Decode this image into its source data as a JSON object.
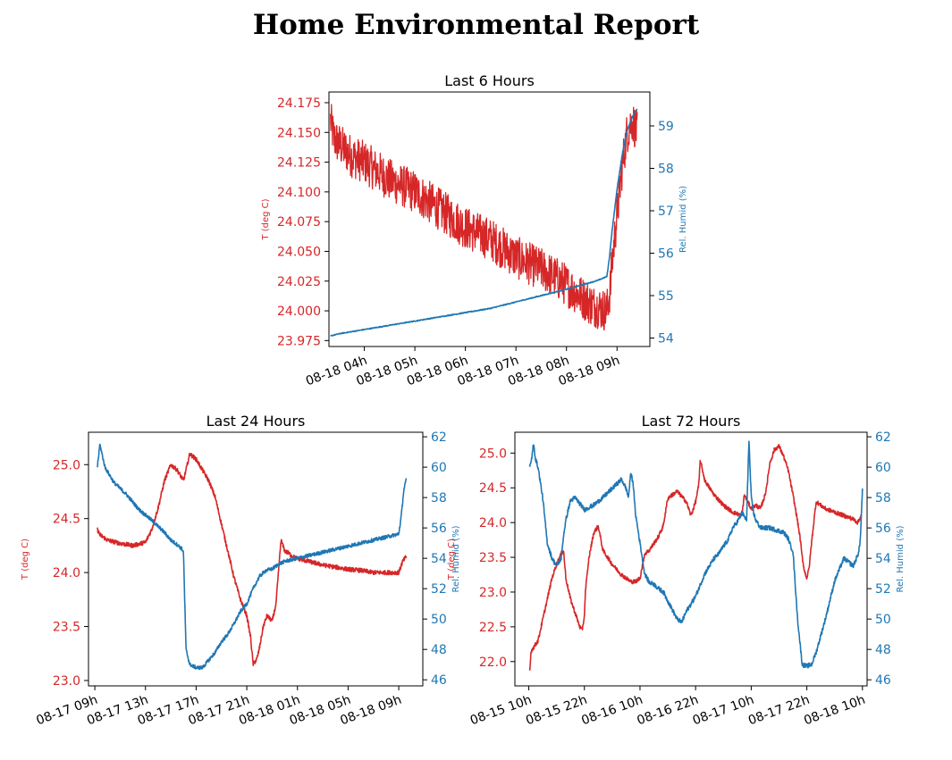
{
  "page": {
    "title": "Home Environmental Report"
  },
  "colors": {
    "temperature": "#d62728",
    "humidity": "#1f77b4",
    "axes": "#000000"
  },
  "chart_data": [
    {
      "type": "line",
      "title": "Last 6 Hours",
      "ylabel": "T (deg C)",
      "y2label": "Rel. Humid (%)",
      "x_unit": "hours since 2024-08-18 00:00",
      "xlim": [
        3.3,
        9.65
      ],
      "ylim": [
        23.97,
        24.184
      ],
      "y2lim": [
        53.8,
        59.8
      ],
      "x_ticks": [
        4,
        5,
        6,
        7,
        8,
        9
      ],
      "x_tick_labels": [
        "08-18 04h",
        "08-18 05h",
        "08-18 06h",
        "08-18 07h",
        "08-18 08h",
        "08-18 09h"
      ],
      "y_ticks": [
        23.975,
        24.0,
        24.025,
        24.05,
        24.075,
        24.1,
        24.125,
        24.15,
        24.175
      ],
      "y_tick_labels": [
        "23.975",
        "24.000",
        "24.025",
        "24.050",
        "24.075",
        "24.100",
        "24.125",
        "24.150",
        "24.175"
      ],
      "y2_ticks": [
        54,
        55,
        56,
        57,
        58,
        59
      ],
      "y2_tick_labels": [
        "54",
        "55",
        "56",
        "57",
        "58",
        "59"
      ],
      "series": [
        {
          "axis": "left",
          "noise": 0.018,
          "x": [
            3.33,
            3.4,
            3.5,
            3.75,
            4.0,
            4.5,
            5.0,
            5.5,
            6.0,
            6.5,
            7.0,
            7.5,
            7.9,
            8.2,
            8.5,
            8.8,
            8.87,
            8.9,
            9.0,
            9.1,
            9.2,
            9.3,
            9.4
          ],
          "y": [
            24.16,
            24.145,
            24.14,
            24.13,
            24.125,
            24.11,
            24.1,
            24.085,
            24.07,
            24.06,
            24.045,
            24.035,
            24.025,
            24.015,
            24.005,
            24.0,
            24.02,
            24.04,
            24.08,
            24.12,
            24.15,
            24.16,
            24.15
          ]
        },
        {
          "axis": "right",
          "noise": 0.01,
          "x": [
            3.33,
            3.5,
            4.0,
            4.5,
            5.0,
            5.5,
            6.0,
            6.5,
            7.0,
            7.5,
            8.0,
            8.3,
            8.6,
            8.8,
            8.85,
            8.9,
            9.0,
            9.1,
            9.2,
            9.3,
            9.4
          ],
          "y": [
            54.05,
            54.1,
            54.2,
            54.3,
            54.4,
            54.5,
            54.6,
            54.7,
            54.85,
            55.0,
            55.15,
            55.25,
            55.35,
            55.45,
            55.9,
            56.5,
            57.5,
            58.3,
            58.9,
            59.2,
            59.4
          ]
        }
      ]
    },
    {
      "type": "line",
      "title": "Last 24 Hours",
      "ylabel": "T (deg C)",
      "y2label": "Rel. Humid (%)",
      "x_unit": "hours since 2024-08-17 00:00",
      "xlim": [
        8.5,
        34.9
      ],
      "ylim": [
        22.95,
        25.3
      ],
      "y2lim": [
        45.6,
        62.3
      ],
      "x_ticks": [
        9,
        13,
        17,
        21,
        25,
        29,
        33
      ],
      "x_tick_labels": [
        "08-17 09h",
        "08-17 13h",
        "08-17 17h",
        "08-17 21h",
        "08-18 01h",
        "08-18 05h",
        "08-18 09h"
      ],
      "y_ticks": [
        23.0,
        23.5,
        24.0,
        24.5,
        25.0
      ],
      "y_tick_labels": [
        "23.0",
        "23.5",
        "24.0",
        "24.5",
        "25.0"
      ],
      "y2_ticks": [
        46,
        48,
        50,
        52,
        54,
        56,
        58,
        60,
        62
      ],
      "y2_tick_labels": [
        "46",
        "48",
        "50",
        "52",
        "54",
        "56",
        "58",
        "60",
        "62"
      ],
      "series": [
        {
          "axis": "left",
          "noise": 0.02,
          "x": [
            9.2,
            9.4,
            10.0,
            11.0,
            12.0,
            13.0,
            13.5,
            14.0,
            14.5,
            15.0,
            15.5,
            16.0,
            16.5,
            17.0,
            17.5,
            18.0,
            18.5,
            19.0,
            19.5,
            20.0,
            20.5,
            21.0,
            21.3,
            21.5,
            21.8,
            22.0,
            22.3,
            22.6,
            23.0,
            23.3,
            23.7,
            24.0,
            24.3,
            24.6,
            25.0,
            26.0,
            27.0,
            28.0,
            29.0,
            30.0,
            31.0,
            32.0,
            33.0,
            33.3,
            33.6
          ],
          "y": [
            24.4,
            24.35,
            24.3,
            24.27,
            24.25,
            24.28,
            24.4,
            24.6,
            24.85,
            25.0,
            24.95,
            24.85,
            25.1,
            25.05,
            24.95,
            24.85,
            24.7,
            24.45,
            24.2,
            23.95,
            23.75,
            23.6,
            23.4,
            23.15,
            23.2,
            23.3,
            23.5,
            23.6,
            23.55,
            23.7,
            24.3,
            24.2,
            24.18,
            24.15,
            24.13,
            24.1,
            24.07,
            24.05,
            24.03,
            24.02,
            24.0,
            24.0,
            24.0,
            24.1,
            24.15
          ]
        },
        {
          "axis": "right",
          "noise": 0.12,
          "x": [
            9.2,
            9.4,
            9.8,
            10.5,
            11.5,
            12.5,
            13.5,
            14.5,
            15.0,
            15.5,
            15.9,
            16.0,
            16.2,
            16.5,
            17.0,
            17.5,
            18.0,
            18.5,
            19.0,
            19.5,
            20.0,
            20.5,
            21.0,
            21.5,
            22.0,
            22.5,
            23.0,
            23.5,
            24.0,
            25.0,
            26.0,
            27.0,
            28.0,
            29.0,
            30.0,
            31.0,
            32.0,
            33.0,
            33.2,
            33.4,
            33.6
          ],
          "y": [
            60.0,
            61.5,
            60.0,
            59.0,
            58.2,
            57.2,
            56.5,
            55.7,
            55.2,
            54.9,
            54.6,
            54.4,
            48.0,
            47.0,
            46.8,
            46.8,
            47.3,
            47.8,
            48.5,
            49.0,
            49.7,
            50.5,
            51.0,
            52.0,
            52.8,
            53.2,
            53.3,
            53.6,
            53.8,
            54.0,
            54.2,
            54.4,
            54.6,
            54.8,
            55.0,
            55.2,
            55.4,
            55.6,
            56.8,
            58.5,
            59.2
          ]
        }
      ]
    },
    {
      "type": "line",
      "title": "Last 72 Hours",
      "ylabel": "T (deg C)",
      "y2label": "Rel. Humid (%)",
      "x_unit": "hours since 2024-08-15 00:00",
      "xlim": [
        7.0,
        83.0
      ],
      "ylim": [
        21.65,
        25.3
      ],
      "y2lim": [
        45.6,
        62.3
      ],
      "x_ticks": [
        10,
        22,
        34,
        46,
        58,
        70,
        82
      ],
      "x_tick_labels": [
        "08-15 10h",
        "08-15 22h",
        "08-16 10h",
        "08-16 22h",
        "08-17 10h",
        "08-17 22h",
        "08-18 10h"
      ],
      "y_ticks": [
        22.0,
        22.5,
        23.0,
        23.5,
        24.0,
        24.5,
        25.0
      ],
      "y_tick_labels": [
        "22.0",
        "22.5",
        "23.0",
        "23.5",
        "24.0",
        "24.5",
        "25.0"
      ],
      "y2_ticks": [
        46,
        48,
        50,
        52,
        54,
        56,
        58,
        60,
        62
      ],
      "y2_tick_labels": [
        "46",
        "48",
        "50",
        "52",
        "54",
        "56",
        "58",
        "60",
        "62"
      ],
      "series": [
        {
          "axis": "left",
          "noise": 0.03,
          "x": [
            10.2,
            10.5,
            11.0,
            12.0,
            13.0,
            14.0,
            15.0,
            16.0,
            17.0,
            17.5,
            18.0,
            19.0,
            20.0,
            21.0,
            21.5,
            22.0,
            22.2,
            23.0,
            24.0,
            25.0,
            26.0,
            28.0,
            30.0,
            32.0,
            33.0,
            34.0,
            35.0,
            36.0,
            37.0,
            38.0,
            39.0,
            40.0,
            42.0,
            44.0,
            45.0,
            46.0,
            46.7,
            47.0,
            48.0,
            50.0,
            52.0,
            54.0,
            56.0,
            56.5,
            58.0,
            59.0,
            60.0,
            61.0,
            61.5,
            62.0,
            63.0,
            64.0,
            65.0,
            66.0,
            67.0,
            67.8,
            68.5,
            69.0,
            69.5,
            70.0,
            70.5,
            71.0,
            72.0,
            74.0,
            76.0,
            78.0,
            80.0,
            81.0,
            81.7
          ],
          "y": [
            21.85,
            22.15,
            22.2,
            22.3,
            22.6,
            22.9,
            23.2,
            23.4,
            23.55,
            23.6,
            23.2,
            22.9,
            22.7,
            22.5,
            22.45,
            22.65,
            23.0,
            23.5,
            23.85,
            23.95,
            23.6,
            23.4,
            23.25,
            23.15,
            23.15,
            23.2,
            23.55,
            23.6,
            23.7,
            23.8,
            23.95,
            24.35,
            24.45,
            24.3,
            24.1,
            24.3,
            24.55,
            24.9,
            24.6,
            24.4,
            24.25,
            24.15,
            24.1,
            24.4,
            24.2,
            24.25,
            24.2,
            24.4,
            24.6,
            24.85,
            25.05,
            25.1,
            24.95,
            24.75,
            24.4,
            24.1,
            23.8,
            23.5,
            23.3,
            23.2,
            23.35,
            23.7,
            24.3,
            24.2,
            24.15,
            24.1,
            24.05,
            24.0,
            24.1
          ]
        },
        {
          "axis": "right",
          "noise": 0.15,
          "x": [
            10.2,
            10.5,
            11.0,
            11.5,
            12.0,
            13.0,
            14.0,
            15.0,
            16.0,
            17.0,
            17.5,
            18.0,
            18.5,
            19.0,
            20.0,
            21.0,
            22.0,
            24.0,
            26.0,
            28.0,
            30.0,
            31.0,
            31.5,
            32.0,
            32.5,
            33.0,
            34.0,
            35.0,
            36.0,
            37.0,
            38.0,
            39.0,
            40.0,
            41.0,
            42.0,
            43.0,
            44.0,
            46.0,
            48.0,
            50.0,
            51.0,
            52.0,
            53.0,
            54.0,
            55.0,
            56.0,
            57.0,
            57.5,
            58.0,
            58.5,
            59.0,
            60.0,
            61.0,
            62.0,
            63.0,
            64.0,
            65.0,
            66.0,
            66.5,
            67.0,
            68.0,
            69.0,
            70.0,
            71.0,
            72.0,
            74.0,
            76.0,
            78.0,
            80.0,
            81.0,
            81.5,
            82.0
          ],
          "y": [
            60.0,
            60.3,
            61.5,
            60.5,
            60.0,
            58.0,
            55.0,
            54.0,
            53.5,
            54.0,
            55.5,
            56.5,
            57.2,
            57.8,
            58.0,
            57.6,
            57.2,
            57.5,
            58.0,
            58.6,
            59.2,
            58.6,
            58.0,
            59.6,
            59.0,
            57.0,
            55.0,
            53.0,
            52.4,
            52.3,
            52.0,
            51.8,
            51.2,
            50.6,
            50.0,
            49.8,
            50.5,
            51.5,
            53.0,
            54.0,
            54.3,
            54.8,
            55.2,
            56.0,
            56.4,
            57.0,
            56.5,
            61.8,
            58.0,
            57.0,
            56.5,
            56.0,
            56.0,
            56.0,
            55.9,
            55.8,
            55.7,
            55.3,
            54.8,
            54.5,
            50.0,
            47.0,
            46.9,
            47.0,
            47.8,
            50.0,
            52.5,
            54.0,
            53.5,
            54.2,
            55.0,
            58.5
          ]
        }
      ]
    }
  ]
}
